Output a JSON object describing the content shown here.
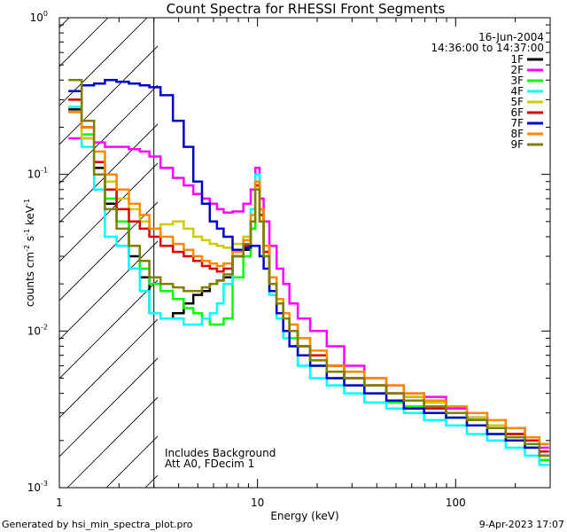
{
  "chart_data": {
    "type": "line",
    "title": "Count Spectra for RHESSI Front Segments",
    "xlabel": "Energy (keV)",
    "ylabel": "counts cm",
    "ylabel_exp2": "-2",
    "ylabel_s": "s",
    "ylabel_exp1a": "-1",
    "ylabel_kev": "keV",
    "ylabel_exp1b": "-1",
    "xscale": "log",
    "yscale": "log",
    "xlim": [
      1,
      300
    ],
    "ylim": [
      0.001,
      1
    ],
    "x_ticks": [
      {
        "value": 1,
        "label": "1"
      },
      {
        "value": 10,
        "label": "10"
      },
      {
        "value": 100,
        "label": "100"
      }
    ],
    "y_ticks": [
      {
        "value": 0.001,
        "base": "10",
        "exp": "-3"
      },
      {
        "value": 0.01,
        "base": "10",
        "exp": "-2"
      },
      {
        "value": 0.1,
        "base": "10",
        "exp": "-1"
      },
      {
        "value": 1,
        "base": "10",
        "exp": "0"
      }
    ],
    "date": "16-Jun-2004",
    "time_range": "14:36:00 to 14:37:00",
    "annotations": [
      "Includes Background",
      "Att A0, FDecim 1"
    ],
    "hatched_region_keV": [
      1,
      3
    ],
    "series": [
      {
        "name": "1F",
        "color": "#000000",
        "x": [
          1.2,
          1.4,
          1.6,
          1.8,
          2.1,
          2.4,
          2.7,
          3.0,
          3.5,
          4.0,
          4.5,
          5.0,
          5.5,
          6.0,
          6.5,
          7.0,
          8.0,
          9.0,
          9.5,
          10.0,
          10.5,
          11.0,
          12.0,
          13.0,
          14.0,
          15.0,
          17.0,
          20.0,
          25.0,
          30.0,
          40.0,
          50.0,
          60.0,
          80.0,
          100.0,
          130.0,
          160.0,
          200.0,
          250.0,
          280.0
        ],
        "y": [
          0.26,
          0.2,
          0.11,
          0.065,
          0.05,
          0.03,
          0.022,
          0.013,
          0.012,
          0.013,
          0.015,
          0.017,
          0.018,
          0.02,
          0.021,
          0.022,
          0.03,
          0.033,
          0.045,
          0.09,
          0.06,
          0.035,
          0.02,
          0.015,
          0.012,
          0.01,
          0.008,
          0.007,
          0.006,
          0.005,
          0.0045,
          0.004,
          0.0038,
          0.0035,
          0.003,
          0.0028,
          0.0025,
          0.0022,
          0.002,
          0.0015
        ]
      },
      {
        "name": "2F",
        "color": "#ff00ff",
        "x": [
          1.2,
          1.4,
          1.6,
          1.8,
          2.1,
          2.4,
          2.7,
          3.0,
          3.5,
          4.0,
          4.5,
          5.0,
          5.5,
          6.0,
          6.5,
          7.0,
          8.0,
          9.0,
          9.5,
          10.0,
          10.5,
          11.0,
          12.0,
          13.0,
          14.0,
          15.0,
          17.0,
          20.0,
          25.0,
          30.0,
          40.0,
          50.0,
          60.0,
          80.0,
          100.0,
          130.0,
          160.0,
          200.0,
          250.0,
          280.0
        ],
        "y": [
          0.17,
          0.17,
          0.16,
          0.15,
          0.15,
          0.145,
          0.14,
          0.13,
          0.11,
          0.095,
          0.085,
          0.075,
          0.07,
          0.065,
          0.06,
          0.057,
          0.058,
          0.065,
          0.08,
          0.11,
          0.07,
          0.05,
          0.035,
          0.025,
          0.02,
          0.015,
          0.012,
          0.01,
          0.008,
          0.006,
          0.005,
          0.0045,
          0.004,
          0.0038,
          0.0032,
          0.003,
          0.0027,
          0.0024,
          0.002,
          0.0018
        ]
      },
      {
        "name": "3F",
        "color": "#00ff00",
        "x": [
          1.2,
          1.4,
          1.6,
          1.8,
          2.1,
          2.4,
          2.7,
          3.0,
          3.5,
          4.0,
          4.5,
          5.0,
          5.5,
          6.0,
          6.5,
          7.0,
          8.0,
          9.0,
          9.5,
          10.0,
          10.5,
          11.0,
          12.0,
          13.0,
          14.0,
          15.0,
          17.0,
          20.0,
          25.0,
          30.0,
          40.0,
          50.0,
          60.0,
          80.0,
          100.0,
          130.0,
          160.0,
          200.0,
          250.0,
          280.0
        ],
        "y": [
          0.3,
          0.18,
          0.1,
          0.07,
          0.05,
          0.035,
          0.025,
          0.02,
          0.018,
          0.016,
          0.014,
          0.013,
          0.012,
          0.011,
          0.011,
          0.012,
          0.022,
          0.03,
          0.045,
          0.085,
          0.055,
          0.03,
          0.018,
          0.013,
          0.01,
          0.009,
          0.007,
          0.006,
          0.005,
          0.0045,
          0.004,
          0.0035,
          0.0033,
          0.003,
          0.0028,
          0.0025,
          0.0022,
          0.002,
          0.0018,
          0.0015
        ]
      },
      {
        "name": "4F",
        "color": "#00ffff",
        "x": [
          1.2,
          1.4,
          1.6,
          1.8,
          2.1,
          2.4,
          2.7,
          3.0,
          3.5,
          4.0,
          4.5,
          5.0,
          5.5,
          6.0,
          6.5,
          7.0,
          8.0,
          9.0,
          9.5,
          10.0,
          10.5,
          11.0,
          12.0,
          13.0,
          14.0,
          15.0,
          17.0,
          20.0,
          25.0,
          30.0,
          40.0,
          50.0,
          60.0,
          80.0,
          100.0,
          130.0,
          160.0,
          200.0,
          250.0,
          280.0
        ],
        "y": [
          0.27,
          0.15,
          0.08,
          0.04,
          0.035,
          0.025,
          0.018,
          0.013,
          0.012,
          0.012,
          0.011,
          0.011,
          0.012,
          0.013,
          0.015,
          0.02,
          0.03,
          0.04,
          0.06,
          0.1,
          0.05,
          0.03,
          0.017,
          0.012,
          0.009,
          0.008,
          0.006,
          0.005,
          0.0045,
          0.004,
          0.0035,
          0.0032,
          0.003,
          0.0027,
          0.0025,
          0.0022,
          0.002,
          0.0018,
          0.0016,
          0.0014
        ]
      },
      {
        "name": "5F",
        "color": "#cccc00",
        "x": [
          1.2,
          1.4,
          1.6,
          1.8,
          2.1,
          2.4,
          2.7,
          3.0,
          3.5,
          4.0,
          4.5,
          5.0,
          5.5,
          6.0,
          6.5,
          7.0,
          8.0,
          9.0,
          9.5,
          10.0,
          10.5,
          11.0,
          12.0,
          13.0,
          14.0,
          15.0,
          17.0,
          20.0,
          25.0,
          30.0,
          40.0,
          50.0,
          60.0,
          80.0,
          100.0,
          130.0,
          160.0,
          200.0,
          250.0,
          280.0
        ],
        "y": [
          0.25,
          0.17,
          0.12,
          0.09,
          0.07,
          0.06,
          0.05,
          0.045,
          0.048,
          0.05,
          0.045,
          0.04,
          0.038,
          0.036,
          0.035,
          0.034,
          0.036,
          0.04,
          0.05,
          0.08,
          0.05,
          0.032,
          0.02,
          0.015,
          0.012,
          0.01,
          0.008,
          0.007,
          0.006,
          0.005,
          0.0045,
          0.004,
          0.0038,
          0.0035,
          0.003,
          0.0028,
          0.0025,
          0.0022,
          0.002,
          0.0016
        ]
      },
      {
        "name": "6F",
        "color": "#dd0000",
        "x": [
          1.2,
          1.4,
          1.6,
          1.8,
          2.1,
          2.4,
          2.7,
          3.0,
          3.5,
          4.0,
          4.5,
          5.0,
          5.5,
          6.0,
          6.5,
          7.0,
          8.0,
          9.0,
          9.5,
          10.0,
          10.5,
          11.0,
          12.0,
          13.0,
          14.0,
          15.0,
          17.0,
          20.0,
          25.0,
          30.0,
          40.0,
          50.0,
          60.0,
          80.0,
          100.0,
          130.0,
          160.0,
          200.0,
          250.0,
          280.0
        ],
        "y": [
          0.3,
          0.2,
          0.12,
          0.08,
          0.06,
          0.05,
          0.045,
          0.04,
          0.035,
          0.032,
          0.03,
          0.028,
          0.026,
          0.025,
          0.024,
          0.025,
          0.03,
          0.035,
          0.05,
          0.085,
          0.055,
          0.032,
          0.02,
          0.015,
          0.012,
          0.01,
          0.008,
          0.007,
          0.006,
          0.005,
          0.0045,
          0.004,
          0.0036,
          0.0032,
          0.003,
          0.0027,
          0.0024,
          0.0022,
          0.002,
          0.0017
        ]
      },
      {
        "name": "7F",
        "color": "#0000cc",
        "x": [
          1.2,
          1.4,
          1.6,
          1.8,
          2.1,
          2.4,
          2.7,
          3.0,
          3.5,
          4.0,
          4.5,
          5.0,
          5.5,
          6.0,
          6.5,
          7.0,
          8.0,
          9.0,
          9.5,
          10.0,
          10.5,
          11.0,
          12.0,
          13.0,
          14.0,
          15.0,
          17.0,
          20.0,
          25.0,
          30.0,
          40.0,
          50.0,
          60.0,
          80.0,
          100.0,
          130.0,
          160.0,
          200.0,
          250.0,
          280.0
        ],
        "y": [
          0.34,
          0.37,
          0.38,
          0.4,
          0.39,
          0.38,
          0.37,
          0.36,
          0.32,
          0.22,
          0.15,
          0.09,
          0.065,
          0.05,
          0.045,
          0.04,
          0.033,
          0.034,
          0.035,
          0.035,
          0.03,
          0.025,
          0.018,
          0.013,
          0.01,
          0.008,
          0.007,
          0.006,
          0.005,
          0.0045,
          0.004,
          0.0036,
          0.0032,
          0.003,
          0.0028,
          0.0025,
          0.0022,
          0.002,
          0.0018,
          0.0016
        ]
      },
      {
        "name": "8F",
        "color": "#ff8800",
        "x": [
          1.2,
          1.4,
          1.6,
          1.8,
          2.1,
          2.4,
          2.7,
          3.0,
          3.5,
          4.0,
          4.5,
          5.0,
          5.5,
          6.0,
          6.5,
          7.0,
          8.0,
          9.0,
          9.5,
          10.0,
          10.5,
          11.0,
          12.0,
          13.0,
          14.0,
          15.0,
          17.0,
          20.0,
          25.0,
          30.0,
          40.0,
          50.0,
          60.0,
          80.0,
          100.0,
          130.0,
          160.0,
          200.0,
          250.0,
          280.0
        ],
        "y": [
          0.25,
          0.2,
          0.14,
          0.1,
          0.08,
          0.065,
          0.055,
          0.045,
          0.04,
          0.036,
          0.033,
          0.03,
          0.028,
          0.027,
          0.026,
          0.027,
          0.032,
          0.038,
          0.055,
          0.09,
          0.06,
          0.035,
          0.022,
          0.016,
          0.013,
          0.011,
          0.009,
          0.0075,
          0.006,
          0.0055,
          0.005,
          0.0045,
          0.004,
          0.0036,
          0.0033,
          0.003,
          0.0027,
          0.0024,
          0.0021,
          0.0019
        ]
      },
      {
        "name": "9F",
        "color": "#808000",
        "x": [
          1.2,
          1.4,
          1.6,
          1.8,
          2.1,
          2.4,
          2.7,
          3.0,
          3.5,
          4.0,
          4.5,
          5.0,
          5.5,
          6.0,
          6.5,
          7.0,
          8.0,
          9.0,
          9.5,
          10.0,
          10.5,
          11.0,
          12.0,
          13.0,
          14.0,
          15.0,
          17.0,
          20.0,
          25.0,
          30.0,
          40.0,
          50.0,
          60.0,
          80.0,
          100.0,
          130.0,
          160.0,
          200.0,
          250.0,
          280.0
        ],
        "y": [
          0.4,
          0.22,
          0.1,
          0.06,
          0.045,
          0.035,
          0.028,
          0.022,
          0.02,
          0.019,
          0.018,
          0.018,
          0.019,
          0.02,
          0.021,
          0.023,
          0.03,
          0.036,
          0.05,
          0.08,
          0.05,
          0.03,
          0.02,
          0.015,
          0.012,
          0.01,
          0.008,
          0.0065,
          0.0055,
          0.005,
          0.0045,
          0.004,
          0.0036,
          0.0033,
          0.003,
          0.0027,
          0.0024,
          0.0021,
          0.0019,
          0.0016
        ]
      }
    ]
  },
  "footer": {
    "generated_by": "Generated by hsi_min_spectra_plot.pro",
    "timestamp": "9-Apr-2023 17:07"
  }
}
